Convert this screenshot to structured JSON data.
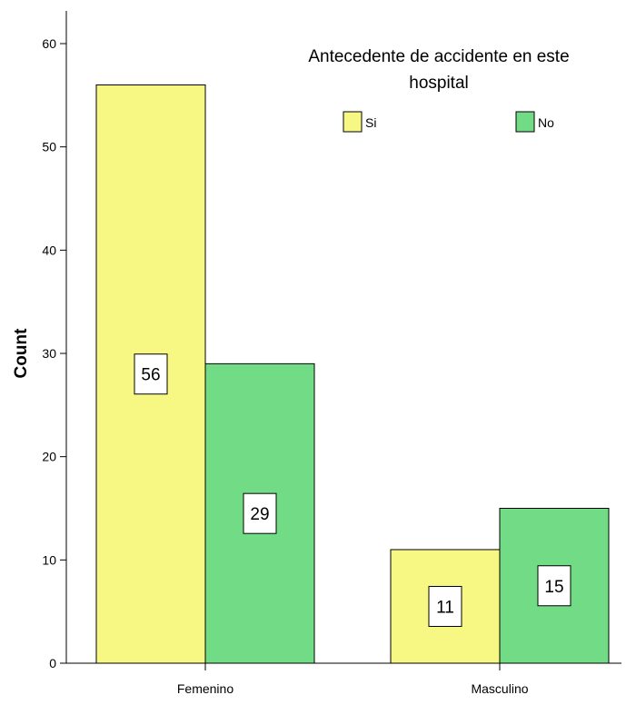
{
  "chart_data": {
    "type": "bar",
    "categories": [
      "Femenino",
      "Masculino"
    ],
    "series": [
      {
        "name": "Si",
        "values": [
          56,
          11
        ],
        "color": "#f7f783"
      },
      {
        "name": "No",
        "values": [
          29,
          15
        ],
        "color": "#72db86"
      }
    ],
    "xlabel": "",
    "ylabel": "Count",
    "ylim": [
      0,
      60
    ],
    "yticks": [
      0,
      10,
      20,
      30,
      40,
      50,
      60
    ],
    "legend": {
      "title_line1": "Antecedente de accidente en este",
      "title_line2": "hospital",
      "position": "top-right"
    },
    "grid": false
  }
}
